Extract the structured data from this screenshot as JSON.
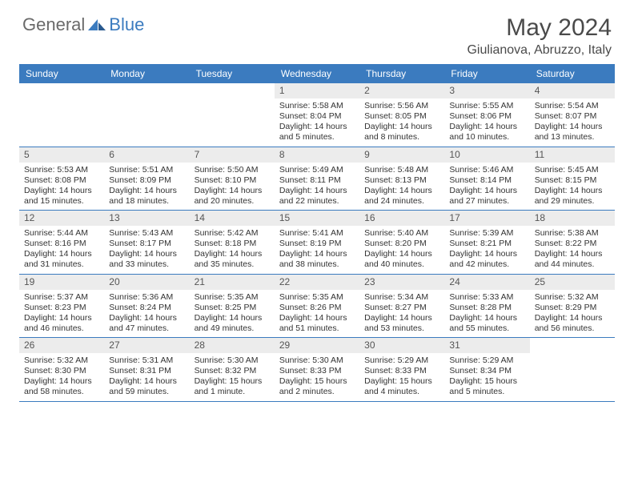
{
  "logo": {
    "part1": "General",
    "part2": "Blue"
  },
  "title": "May 2024",
  "location": "Giulianova, Abruzzo, Italy",
  "colors": {
    "header_bg": "#3b7bbf",
    "daynum_bg": "#ececec",
    "text": "#333333",
    "title_text": "#4a4a4a"
  },
  "day_names": [
    "Sunday",
    "Monday",
    "Tuesday",
    "Wednesday",
    "Thursday",
    "Friday",
    "Saturday"
  ],
  "weeks": [
    [
      {
        "empty": true
      },
      {
        "empty": true
      },
      {
        "empty": true
      },
      {
        "n": "1",
        "sr": "Sunrise: 5:58 AM",
        "ss": "Sunset: 8:04 PM",
        "dl": "Daylight: 14 hours and 5 minutes."
      },
      {
        "n": "2",
        "sr": "Sunrise: 5:56 AM",
        "ss": "Sunset: 8:05 PM",
        "dl": "Daylight: 14 hours and 8 minutes."
      },
      {
        "n": "3",
        "sr": "Sunrise: 5:55 AM",
        "ss": "Sunset: 8:06 PM",
        "dl": "Daylight: 14 hours and 10 minutes."
      },
      {
        "n": "4",
        "sr": "Sunrise: 5:54 AM",
        "ss": "Sunset: 8:07 PM",
        "dl": "Daylight: 14 hours and 13 minutes."
      }
    ],
    [
      {
        "n": "5",
        "sr": "Sunrise: 5:53 AM",
        "ss": "Sunset: 8:08 PM",
        "dl": "Daylight: 14 hours and 15 minutes."
      },
      {
        "n": "6",
        "sr": "Sunrise: 5:51 AM",
        "ss": "Sunset: 8:09 PM",
        "dl": "Daylight: 14 hours and 18 minutes."
      },
      {
        "n": "7",
        "sr": "Sunrise: 5:50 AM",
        "ss": "Sunset: 8:10 PM",
        "dl": "Daylight: 14 hours and 20 minutes."
      },
      {
        "n": "8",
        "sr": "Sunrise: 5:49 AM",
        "ss": "Sunset: 8:11 PM",
        "dl": "Daylight: 14 hours and 22 minutes."
      },
      {
        "n": "9",
        "sr": "Sunrise: 5:48 AM",
        "ss": "Sunset: 8:13 PM",
        "dl": "Daylight: 14 hours and 24 minutes."
      },
      {
        "n": "10",
        "sr": "Sunrise: 5:46 AM",
        "ss": "Sunset: 8:14 PM",
        "dl": "Daylight: 14 hours and 27 minutes."
      },
      {
        "n": "11",
        "sr": "Sunrise: 5:45 AM",
        "ss": "Sunset: 8:15 PM",
        "dl": "Daylight: 14 hours and 29 minutes."
      }
    ],
    [
      {
        "n": "12",
        "sr": "Sunrise: 5:44 AM",
        "ss": "Sunset: 8:16 PM",
        "dl": "Daylight: 14 hours and 31 minutes."
      },
      {
        "n": "13",
        "sr": "Sunrise: 5:43 AM",
        "ss": "Sunset: 8:17 PM",
        "dl": "Daylight: 14 hours and 33 minutes."
      },
      {
        "n": "14",
        "sr": "Sunrise: 5:42 AM",
        "ss": "Sunset: 8:18 PM",
        "dl": "Daylight: 14 hours and 35 minutes."
      },
      {
        "n": "15",
        "sr": "Sunrise: 5:41 AM",
        "ss": "Sunset: 8:19 PM",
        "dl": "Daylight: 14 hours and 38 minutes."
      },
      {
        "n": "16",
        "sr": "Sunrise: 5:40 AM",
        "ss": "Sunset: 8:20 PM",
        "dl": "Daylight: 14 hours and 40 minutes."
      },
      {
        "n": "17",
        "sr": "Sunrise: 5:39 AM",
        "ss": "Sunset: 8:21 PM",
        "dl": "Daylight: 14 hours and 42 minutes."
      },
      {
        "n": "18",
        "sr": "Sunrise: 5:38 AM",
        "ss": "Sunset: 8:22 PM",
        "dl": "Daylight: 14 hours and 44 minutes."
      }
    ],
    [
      {
        "n": "19",
        "sr": "Sunrise: 5:37 AM",
        "ss": "Sunset: 8:23 PM",
        "dl": "Daylight: 14 hours and 46 minutes."
      },
      {
        "n": "20",
        "sr": "Sunrise: 5:36 AM",
        "ss": "Sunset: 8:24 PM",
        "dl": "Daylight: 14 hours and 47 minutes."
      },
      {
        "n": "21",
        "sr": "Sunrise: 5:35 AM",
        "ss": "Sunset: 8:25 PM",
        "dl": "Daylight: 14 hours and 49 minutes."
      },
      {
        "n": "22",
        "sr": "Sunrise: 5:35 AM",
        "ss": "Sunset: 8:26 PM",
        "dl": "Daylight: 14 hours and 51 minutes."
      },
      {
        "n": "23",
        "sr": "Sunrise: 5:34 AM",
        "ss": "Sunset: 8:27 PM",
        "dl": "Daylight: 14 hours and 53 minutes."
      },
      {
        "n": "24",
        "sr": "Sunrise: 5:33 AM",
        "ss": "Sunset: 8:28 PM",
        "dl": "Daylight: 14 hours and 55 minutes."
      },
      {
        "n": "25",
        "sr": "Sunrise: 5:32 AM",
        "ss": "Sunset: 8:29 PM",
        "dl": "Daylight: 14 hours and 56 minutes."
      }
    ],
    [
      {
        "n": "26",
        "sr": "Sunrise: 5:32 AM",
        "ss": "Sunset: 8:30 PM",
        "dl": "Daylight: 14 hours and 58 minutes."
      },
      {
        "n": "27",
        "sr": "Sunrise: 5:31 AM",
        "ss": "Sunset: 8:31 PM",
        "dl": "Daylight: 14 hours and 59 minutes."
      },
      {
        "n": "28",
        "sr": "Sunrise: 5:30 AM",
        "ss": "Sunset: 8:32 PM",
        "dl": "Daylight: 15 hours and 1 minute."
      },
      {
        "n": "29",
        "sr": "Sunrise: 5:30 AM",
        "ss": "Sunset: 8:33 PM",
        "dl": "Daylight: 15 hours and 2 minutes."
      },
      {
        "n": "30",
        "sr": "Sunrise: 5:29 AM",
        "ss": "Sunset: 8:33 PM",
        "dl": "Daylight: 15 hours and 4 minutes."
      },
      {
        "n": "31",
        "sr": "Sunrise: 5:29 AM",
        "ss": "Sunset: 8:34 PM",
        "dl": "Daylight: 15 hours and 5 minutes."
      },
      {
        "empty": true
      }
    ]
  ]
}
